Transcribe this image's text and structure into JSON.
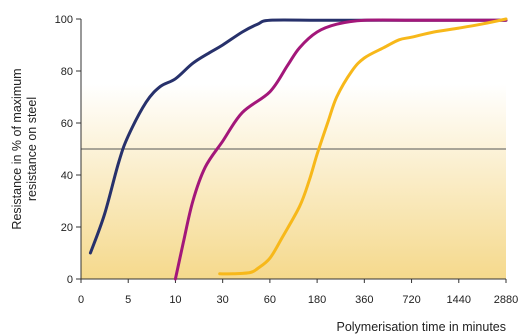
{
  "chart_data": {
    "type": "line",
    "title": "",
    "xlabel": "Polymerisation time in minutes",
    "ylabel_lines": [
      "Resistance in % of maximum",
      "resistance on steel"
    ],
    "x_ticks": [
      0,
      5,
      10,
      30,
      60,
      180,
      360,
      720,
      1440,
      2880
    ],
    "x_tick_labels": [
      "0",
      "5",
      "10",
      "30",
      "60",
      "180",
      "360",
      "720",
      "1440",
      "2880"
    ],
    "y_ticks": [
      0,
      20,
      40,
      60,
      80,
      100
    ],
    "y_tick_labels": [
      "0",
      "20",
      "40",
      "60",
      "80",
      "100"
    ],
    "ylim": [
      0,
      100
    ],
    "reference_line_y": 50,
    "grid": false,
    "legend": "none",
    "background": {
      "style": "vertical-gradient",
      "top_color": "#ffffff",
      "bottom_color": "#f5d98c",
      "gradient_starts_at_y": 75
    },
    "series": [
      {
        "color": "#27316b",
        "points": [
          [
            1,
            10
          ],
          [
            2.5,
            25
          ],
          [
            4,
            45
          ],
          [
            5,
            55
          ],
          [
            6.5,
            68
          ],
          [
            8,
            74
          ],
          [
            10,
            77
          ],
          [
            15,
            83
          ],
          [
            22,
            87
          ],
          [
            30,
            90
          ],
          [
            40,
            95
          ],
          [
            50,
            98
          ],
          [
            60,
            99.5
          ],
          [
            180,
            99.5
          ],
          [
            360,
            99.5
          ],
          [
            720,
            99.5
          ],
          [
            1440,
            99.5
          ],
          [
            2880,
            99.5
          ]
        ]
      },
      {
        "color": "#a3177a",
        "points": [
          [
            10,
            0
          ],
          [
            12,
            14
          ],
          [
            15,
            30
          ],
          [
            20,
            43
          ],
          [
            30,
            53
          ],
          [
            40,
            64
          ],
          [
            60,
            72
          ],
          [
            90,
            82
          ],
          [
            120,
            89
          ],
          [
            180,
            95
          ],
          [
            240,
            98
          ],
          [
            360,
            99.5
          ],
          [
            720,
            99.5
          ],
          [
            1440,
            99.5
          ],
          [
            2880,
            99.5
          ]
        ]
      },
      {
        "color": "#f7b81a",
        "points": [
          [
            28,
            2
          ],
          [
            35,
            2
          ],
          [
            45,
            2.5
          ],
          [
            50,
            4
          ],
          [
            60,
            8
          ],
          [
            80,
            16
          ],
          [
            120,
            28
          ],
          [
            150,
            38
          ],
          [
            180,
            48
          ],
          [
            210,
            60
          ],
          [
            240,
            70
          ],
          [
            300,
            80
          ],
          [
            360,
            85
          ],
          [
            480,
            89
          ],
          [
            600,
            92
          ],
          [
            720,
            93
          ],
          [
            1000,
            95
          ],
          [
            1440,
            96.5
          ],
          [
            2000,
            98
          ],
          [
            2880,
            100
          ]
        ]
      }
    ]
  }
}
